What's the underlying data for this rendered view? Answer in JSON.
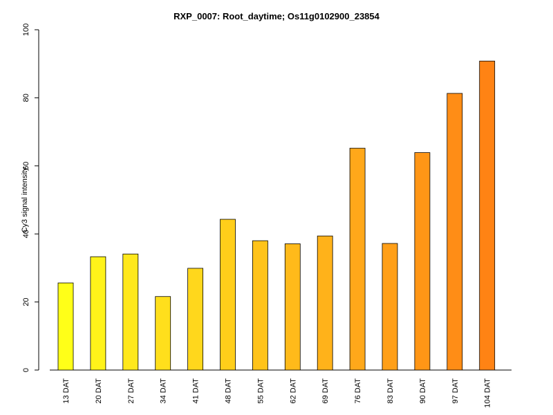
{
  "chart_data": {
    "type": "bar",
    "title": "RXP_0007: Root_daytime; Os11g0102900_23854",
    "xlabel": "",
    "ylabel": "Cy3 signal intensity",
    "ylim": [
      0,
      100
    ],
    "yticks": [
      "0",
      "20",
      "40",
      "60",
      "80",
      "100"
    ],
    "categories": [
      "13 DAT",
      "20 DAT",
      "27 DAT",
      "34 DAT",
      "41 DAT",
      "48 DAT",
      "55 DAT",
      "62 DAT",
      "69 DAT",
      "76 DAT",
      "83 DAT",
      "90 DAT",
      "97 DAT",
      "104 DAT"
    ],
    "values": [
      25.6,
      33.3,
      34.1,
      21.6,
      29.9,
      44.3,
      38.0,
      37.1,
      39.4,
      65.2,
      37.2,
      63.9,
      81.3,
      90.8
    ],
    "colors": [
      "#FFFF18",
      "#FFF31A",
      "#FFE81C",
      "#FFDF1C",
      "#FFD71C",
      "#FFCE1A",
      "#FFC31A",
      "#FFBA1A",
      "#FFB21A",
      "#FFA81A",
      "#FF9F18",
      "#FF9616",
      "#FF8D16",
      "#FF8314"
    ],
    "grid": false,
    "legend": "none"
  }
}
